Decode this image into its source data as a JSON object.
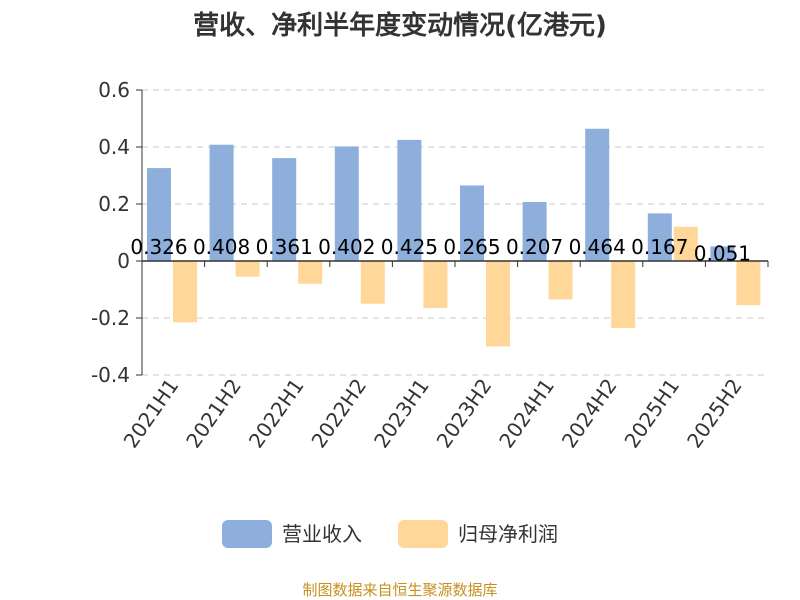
{
  "chart_data": {
    "type": "bar",
    "title": "营收、净利半年度变动情况(亿港元)",
    "categories": [
      "2021H1",
      "2021H2",
      "2022H1",
      "2022H2",
      "2023H1",
      "2023H2",
      "2024H1",
      "2024H2",
      "2025H1",
      "2025H2"
    ],
    "series": [
      {
        "name": "营业收入",
        "color": "#8eaedc",
        "values": [
          0.326,
          0.408,
          0.361,
          0.402,
          0.425,
          0.265,
          0.207,
          0.464,
          0.167,
          0.051
        ],
        "labels": [
          "0.326",
          "0.408",
          "0.361",
          "0.402",
          "0.425",
          "0.265",
          "0.207",
          "0.464",
          "0.167",
          "0.051"
        ]
      },
      {
        "name": "归母净利润",
        "color": "#ffd899",
        "values": [
          -0.215,
          -0.055,
          -0.08,
          -0.15,
          -0.165,
          -0.3,
          -0.135,
          -0.235,
          0.12,
          -0.155
        ]
      }
    ],
    "ylim": [
      -0.4,
      0.6
    ],
    "yticks": [
      "0.6",
      "0.4",
      "0.2",
      "0",
      "-0.2",
      "-0.4"
    ],
    "ytick_values": [
      0.6,
      0.4,
      0.2,
      0,
      -0.2,
      -0.4
    ],
    "grid": true,
    "legend_position": "bottom"
  },
  "source": "制图数据来自恒生聚源数据库"
}
